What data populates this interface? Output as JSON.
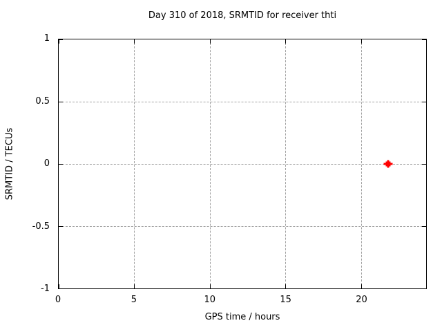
{
  "colors": {
    "background": "#ffffff",
    "axis": "#000000",
    "text": "#000000",
    "grid": "#a0a0a0",
    "marker": "#ff0000"
  },
  "chart_data": {
    "type": "scatter",
    "title": "Day 310 of 2018, SRMTID for receiver thti",
    "xlabel": "GPS time / hours",
    "ylabel": "SRMTID / TECUs",
    "xlim": [
      0,
      24.3
    ],
    "ylim": [
      -1,
      1
    ],
    "grid": true,
    "legend": false,
    "xticks": [
      {
        "value": 0,
        "label": "0"
      },
      {
        "value": 5,
        "label": "5"
      },
      {
        "value": 10,
        "label": "10"
      },
      {
        "value": 15,
        "label": "15"
      },
      {
        "value": 20,
        "label": "20"
      }
    ],
    "yticks": [
      {
        "value": -1,
        "label": "-1"
      },
      {
        "value": -0.5,
        "label": "-0.5"
      },
      {
        "value": 0,
        "label": "0"
      },
      {
        "value": 0.5,
        "label": "0.5"
      },
      {
        "value": 1,
        "label": "1"
      }
    ],
    "series": [
      {
        "name": "SRMTID",
        "color": "#ff0000",
        "marker": "square-plus",
        "points": [
          {
            "x": 21.8,
            "y": 0.0
          }
        ]
      }
    ]
  }
}
